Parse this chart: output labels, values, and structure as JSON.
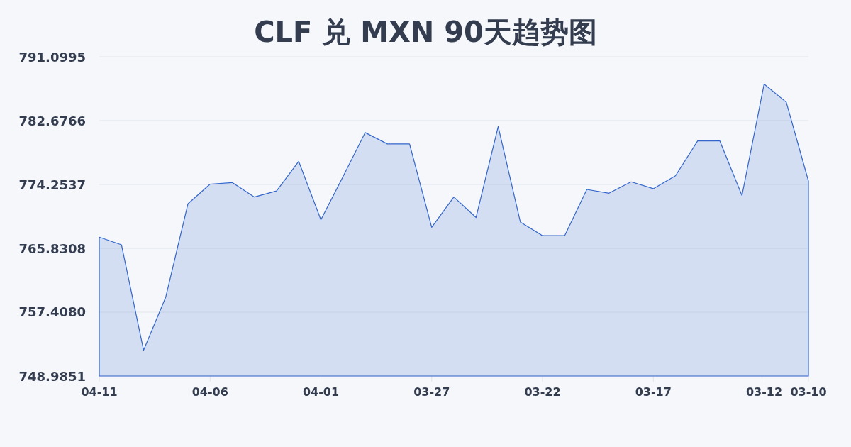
{
  "chart_data": {
    "type": "area",
    "title": "CLF 兑 MXN 90天趋势图",
    "categories": [
      "04-11",
      null,
      null,
      null,
      null,
      "04-06",
      null,
      null,
      null,
      null,
      "04-01",
      null,
      null,
      null,
      null,
      "03-27",
      null,
      null,
      null,
      null,
      "03-22",
      null,
      null,
      null,
      null,
      "03-17",
      null,
      null,
      null,
      null,
      "03-12",
      null,
      "03-10"
    ],
    "series": [
      {
        "color": "#3366cc",
        "values": [
          767.3,
          766.3,
          752.4,
          759.4,
          771.7,
          774.3,
          774.5,
          772.6,
          773.4,
          777.3,
          769.6,
          775.3,
          781.1,
          779.6,
          779.6,
          768.6,
          772.6,
          769.9,
          781.9,
          769.3,
          767.5,
          767.5,
          773.6,
          773.1,
          774.6,
          773.7,
          775.4,
          780.0,
          780.0,
          772.8,
          787.5,
          785.1,
          774.7
        ]
      }
    ],
    "ylim": [
      748.9851,
      791.0995
    ],
    "yticks": [
      748.9851,
      {
        "value": 757.408,
        "label": "757.4080"
      },
      765.8308,
      774.2537,
      782.6766,
      791.0995
    ],
    "grid": "y"
  }
}
